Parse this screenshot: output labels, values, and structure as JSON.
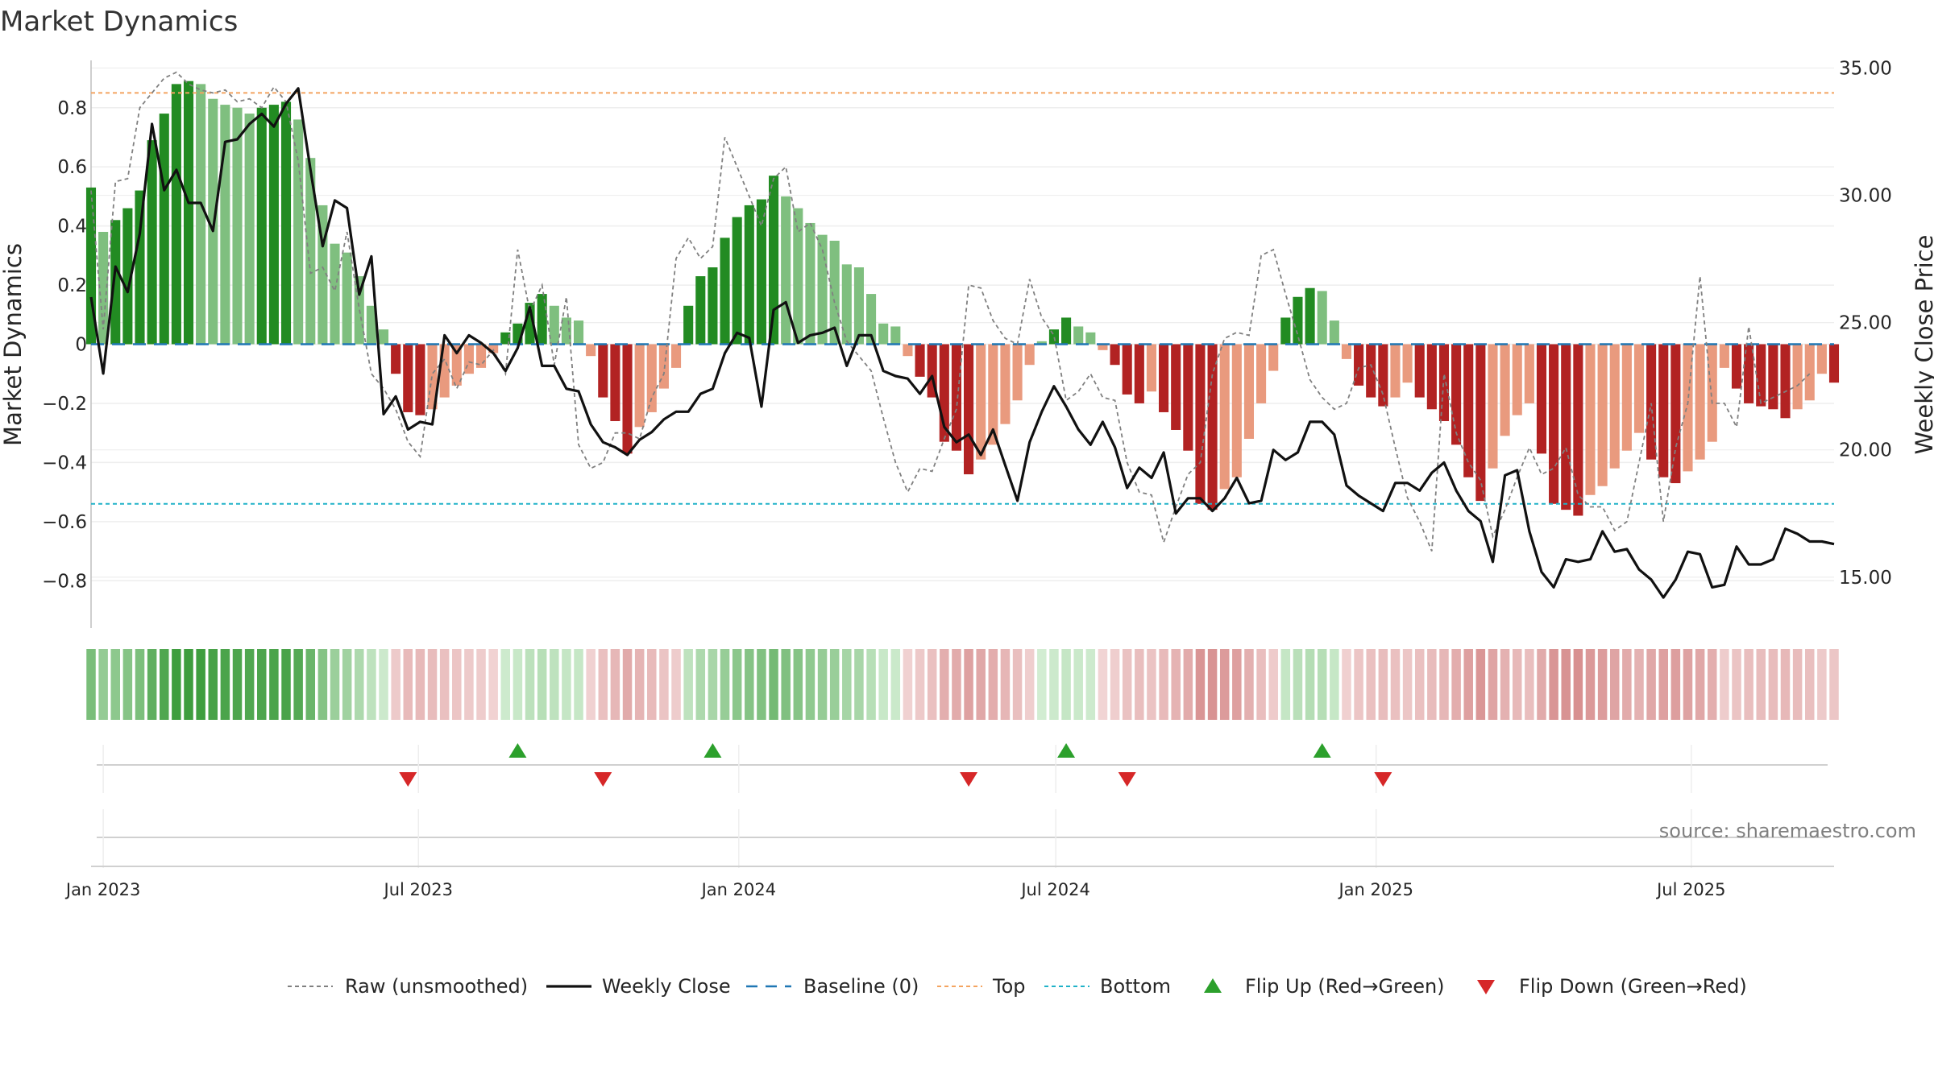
{
  "chart_data": {
    "type": "bar+line",
    "title": "Market Dynamics",
    "ylabel_left": "Market Dynamics",
    "ylabel_right": "Weekly Close Price",
    "source": "source: sharemaestro.com",
    "y_left": {
      "range": [
        -0.96,
        0.96
      ],
      "ticks": [
        0.8,
        0.6,
        0.4,
        0.2,
        0,
        -0.2,
        -0.4,
        -0.6,
        -0.8
      ],
      "tick_labels": [
        "0.8",
        "0.6",
        "0.4",
        "0.2",
        "0",
        "−0.2",
        "−0.4",
        "−0.6",
        "−0.8"
      ]
    },
    "y_right": {
      "range": [
        13.0,
        35.3
      ],
      "ticks": [
        35,
        30,
        25,
        20,
        15
      ],
      "tick_labels": [
        "35.00",
        "30.00",
        "25.00",
        "20.00",
        "15.00"
      ]
    },
    "x_range": [
      "2022-12-25",
      "2025-09-21"
    ],
    "x_ticks": [
      {
        "date": "2023-01-01",
        "label": "Jan 2023"
      },
      {
        "date": "2023-07-01",
        "label": "Jul 2023"
      },
      {
        "date": "2024-01-01",
        "label": "Jan 2024"
      },
      {
        "date": "2024-07-01",
        "label": "Jul 2024"
      },
      {
        "date": "2025-01-01",
        "label": "Jan 2025"
      },
      {
        "date": "2025-07-01",
        "label": "Jul 2025"
      }
    ],
    "start_date": "2022-12-25",
    "week_days": 7,
    "top_level": 0.85,
    "bottom_level": -0.54,
    "baseline": 0,
    "market_dynamics": [
      0.53,
      0.38,
      0.42,
      0.46,
      0.52,
      0.69,
      0.78,
      0.88,
      0.89,
      0.88,
      0.83,
      0.81,
      0.8,
      0.78,
      0.8,
      0.81,
      0.82,
      0.76,
      0.63,
      0.47,
      0.34,
      0.31,
      0.23,
      0.13,
      0.05,
      -0.1,
      -0.23,
      -0.24,
      -0.22,
      -0.18,
      -0.14,
      -0.1,
      -0.08,
      -0.03,
      0.04,
      0.07,
      0.14,
      0.17,
      0.13,
      0.09,
      0.08,
      -0.04,
      -0.18,
      -0.26,
      -0.37,
      -0.28,
      -0.23,
      -0.15,
      -0.08,
      0.13,
      0.23,
      0.26,
      0.36,
      0.43,
      0.47,
      0.49,
      0.57,
      0.5,
      0.46,
      0.41,
      0.37,
      0.35,
      0.27,
      0.26,
      0.17,
      0.07,
      0.06,
      -0.04,
      -0.11,
      -0.18,
      -0.33,
      -0.36,
      -0.44,
      -0.39,
      -0.34,
      -0.27,
      -0.19,
      -0.07,
      0.01,
      0.05,
      0.09,
      0.06,
      0.04,
      -0.02,
      -0.07,
      -0.17,
      -0.2,
      -0.16,
      -0.23,
      -0.29,
      -0.36,
      -0.54,
      -0.56,
      -0.49,
      -0.45,
      -0.32,
      -0.2,
      -0.09,
      0.09,
      0.16,
      0.19,
      0.18,
      0.08,
      -0.05,
      -0.14,
      -0.18,
      -0.21,
      -0.18,
      -0.13,
      -0.18,
      -0.22,
      -0.26,
      -0.34,
      -0.45,
      -0.53,
      -0.42,
      -0.31,
      -0.24,
      -0.2,
      -0.37,
      -0.54,
      -0.56,
      -0.58,
      -0.51,
      -0.48,
      -0.42,
      -0.36,
      -0.3,
      -0.39,
      -0.45,
      -0.47,
      -0.43,
      -0.39,
      -0.33,
      -0.08,
      -0.15,
      -0.2,
      -0.21,
      -0.22,
      -0.25,
      -0.22,
      -0.19,
      -0.1,
      -0.13
    ],
    "weekly_close": [
      26.0,
      23.0,
      27.2,
      26.2,
      28.5,
      32.8,
      30.2,
      31.0,
      29.7,
      29.7,
      28.6,
      32.1,
      32.2,
      32.8,
      33.2,
      32.7,
      33.6,
      34.2,
      31.0,
      28.0,
      29.8,
      29.5,
      26.1,
      27.6,
      21.4,
      22.1,
      20.8,
      21.1,
      21.0,
      24.5,
      23.8,
      24.5,
      24.2,
      23.8,
      23.1,
      24.0,
      25.6,
      23.3,
      23.3,
      22.4,
      22.3,
      21.0,
      20.3,
      20.1,
      19.8,
      20.4,
      20.7,
      21.2,
      21.5,
      21.5,
      22.2,
      22.4,
      23.8,
      24.6,
      24.4,
      21.7,
      25.5,
      25.8,
      24.2,
      24.5,
      24.6,
      24.8,
      23.3,
      24.5,
      24.5,
      23.1,
      22.9,
      22.8,
      22.2,
      22.9,
      20.9,
      20.3,
      20.6,
      19.8,
      20.8,
      19.4,
      18.0,
      20.3,
      21.5,
      22.5,
      21.7,
      20.8,
      20.2,
      21.1,
      20.1,
      18.5,
      19.3,
      18.9,
      19.9,
      17.5,
      18.1,
      18.1,
      17.6,
      18.1,
      18.9,
      17.9,
      18.0,
      20.0,
      19.6,
      19.9,
      21.1,
      21.1,
      20.6,
      18.6,
      18.2,
      17.9,
      17.6,
      18.7,
      18.7,
      18.4,
      19.1,
      19.5,
      18.4,
      17.6,
      17.2,
      15.6,
      19.0,
      19.2,
      16.8,
      15.2,
      14.6,
      15.7,
      15.6,
      15.7,
      16.8,
      16.0,
      16.1,
      15.3,
      14.9,
      14.2,
      14.9,
      16.0,
      15.9,
      14.6,
      14.7,
      16.2,
      15.5,
      15.5,
      15.7,
      16.9,
      16.7,
      16.4,
      16.4,
      16.3
    ],
    "raw": [
      0.52,
      0.05,
      0.55,
      0.56,
      0.8,
      0.85,
      0.9,
      0.92,
      0.88,
      0.86,
      0.85,
      0.86,
      0.82,
      0.83,
      0.8,
      0.87,
      0.82,
      0.62,
      0.24,
      0.26,
      0.18,
      0.38,
      0.12,
      -0.1,
      -0.15,
      -0.22,
      -0.33,
      -0.38,
      -0.1,
      -0.05,
      -0.15,
      -0.06,
      -0.07,
      -0.02,
      -0.1,
      0.32,
      0.11,
      0.2,
      -0.07,
      0.16,
      -0.34,
      -0.42,
      -0.4,
      -0.3,
      -0.3,
      -0.32,
      -0.18,
      -0.1,
      0.29,
      0.36,
      0.29,
      0.33,
      0.7,
      0.6,
      0.5,
      0.4,
      0.56,
      0.6,
      0.38,
      0.41,
      0.32,
      0.14,
      0.01,
      -0.04,
      -0.09,
      -0.25,
      -0.4,
      -0.5,
      -0.42,
      -0.43,
      -0.32,
      -0.22,
      0.2,
      0.19,
      0.08,
      0.02,
      0.0,
      0.22,
      0.09,
      0.03,
      -0.19,
      -0.16,
      -0.1,
      -0.18,
      -0.19,
      -0.4,
      -0.5,
      -0.51,
      -0.67,
      -0.55,
      -0.44,
      -0.4,
      -0.1,
      0.02,
      0.04,
      0.03,
      0.3,
      0.32,
      0.17,
      0.03,
      -0.12,
      -0.18,
      -0.22,
      -0.2,
      -0.08,
      -0.07,
      -0.17,
      -0.35,
      -0.52,
      -0.6,
      -0.7,
      -0.1,
      -0.3,
      -0.4,
      -0.46,
      -0.65,
      -0.56,
      -0.45,
      -0.35,
      -0.44,
      -0.42,
      -0.35,
      -0.51,
      -0.55,
      -0.55,
      -0.63,
      -0.6,
      -0.4,
      -0.2,
      -0.6,
      -0.35,
      -0.2,
      0.23,
      -0.2,
      -0.2,
      -0.28,
      0.06,
      -0.2,
      -0.18,
      -0.16,
      -0.14,
      -0.1
    ],
    "flip_up_dates": [
      "2023-08-27",
      "2023-12-17",
      "2024-07-07",
      "2024-12-01"
    ],
    "flip_down_dates": [
      "2023-06-25",
      "2023-10-15",
      "2024-05-12",
      "2024-08-11",
      "2025-01-05"
    ],
    "colors": {
      "green_strong": "#228b22",
      "green_light": "#7fbf7f",
      "red_strong": "#b22222",
      "red_light": "#e99a7e",
      "raw": "#808080",
      "close": "#111111",
      "baseline": "#1f77b4",
      "top": "#f4a460",
      "bottom": "#20b2c8",
      "flip_up": "#2ca02c",
      "flip_down": "#d62728",
      "grid": "#eeeeee",
      "axis": "#bfbfbf"
    },
    "legend": [
      {
        "label": "Raw (unsmoothed)",
        "type": "dotted",
        "color": "#808080"
      },
      {
        "label": "Weekly Close",
        "type": "solid",
        "color": "#111111"
      },
      {
        "label": "Baseline (0)",
        "type": "dashed",
        "color": "#1f77b4"
      },
      {
        "label": "Top",
        "type": "dotted",
        "color": "#f4a460"
      },
      {
        "label": "Bottom",
        "type": "dotted",
        "color": "#20b2c8"
      },
      {
        "label": "Flip Up (Red→Green)",
        "type": "tri-up",
        "color": "#2ca02c"
      },
      {
        "label": "Flip Down (Green→Red)",
        "type": "tri-down",
        "color": "#d62728"
      }
    ]
  }
}
